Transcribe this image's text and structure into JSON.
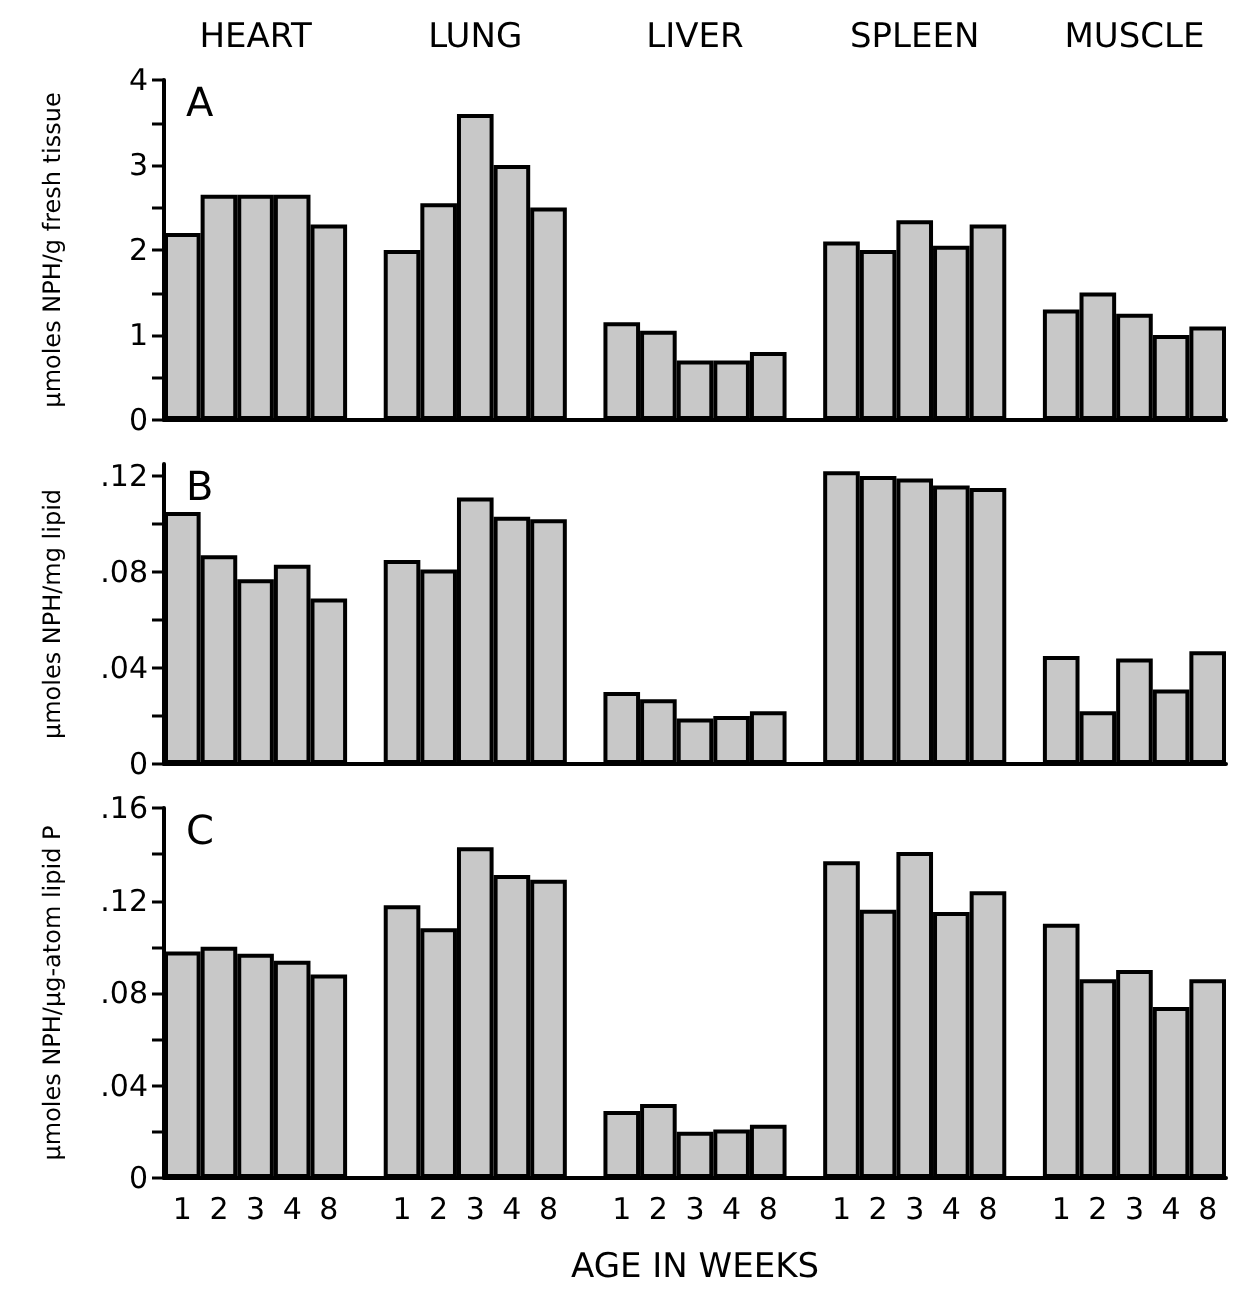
{
  "chart_data": [
    {
      "type": "bar",
      "title": "A",
      "ylabel": "µmoles NPH/g fresh tissue",
      "annotations": [
        "HEART",
        "LUNG",
        "LIVER",
        "SPLEEN",
        "MUSCLE"
      ],
      "tick_labels": "y",
      "categories": [
        "1",
        "2",
        "3",
        "4",
        "8",
        null,
        "1",
        "2",
        "3",
        "4",
        "8",
        null,
        "1",
        "2",
        "3",
        "4",
        "8",
        null,
        "1",
        "2",
        "3",
        "4",
        "8",
        null,
        "1",
        "2",
        "3",
        "4",
        "8"
      ],
      "values": [
        2.2,
        2.65,
        2.65,
        2.65,
        2.3,
        null,
        2.0,
        2.55,
        3.6,
        3.0,
        2.5,
        null,
        1.15,
        1.05,
        0.7,
        0.7,
        0.8,
        null,
        2.1,
        2.0,
        2.35,
        2.05,
        2.3,
        null,
        1.3,
        1.5,
        1.25,
        1.0,
        1.1
      ],
      "color": "#c8c8c8",
      "ylim": [
        0,
        4
      ],
      "yticks": [
        0,
        {
          "value": 0.5,
          "label": null
        },
        1,
        {
          "value": 1.5,
          "label": null
        },
        2,
        {
          "value": 2.5,
          "label": null
        },
        3,
        {
          "value": 3.5,
          "label": null
        },
        4
      ],
      "grid": false
    },
    {
      "type": "bar",
      "title": "B",
      "ylabel": "µmoles NPH/mg lipid",
      "tick_labels": "y",
      "categories": [
        "1",
        "2",
        "3",
        "4",
        "8",
        null,
        "1",
        "2",
        "3",
        "4",
        "8",
        null,
        "1",
        "2",
        "3",
        "4",
        "8",
        null,
        "1",
        "2",
        "3",
        "4",
        "8",
        null,
        "1",
        "2",
        "3",
        "4",
        "8"
      ],
      "values": [
        0.105,
        0.087,
        0.077,
        0.083,
        0.069,
        null,
        0.085,
        0.081,
        0.111,
        0.103,
        0.102,
        null,
        0.03,
        0.027,
        0.019,
        0.02,
        0.022,
        null,
        0.122,
        0.12,
        0.119,
        0.116,
        0.115,
        null,
        0.045,
        0.022,
        0.044,
        0.031,
        0.047
      ],
      "color": "#c8c8c8",
      "ylim": [
        0,
        0.125
      ],
      "yticks": [
        0,
        {
          "value": 0.02,
          "label": null
        },
        {
          "value": 0.04,
          "label": ".04"
        },
        {
          "value": 0.06,
          "label": null
        },
        {
          "value": 0.08,
          "label": ".08"
        },
        {
          "value": 0.1,
          "label": null
        },
        {
          "value": 0.12,
          "label": ".12"
        }
      ],
      "grid": false
    },
    {
      "type": "bar",
      "title": "C",
      "ylabel": "µmoles NPH/µg-atom lipid P",
      "xlabel": "AGE IN WEEKS",
      "categories": [
        "1",
        "2",
        "3",
        "4",
        "8",
        null,
        "1",
        "2",
        "3",
        "4",
        "8",
        null,
        "1",
        "2",
        "3",
        "4",
        "8",
        null,
        "1",
        "2",
        "3",
        "4",
        "8",
        null,
        "1",
        "2",
        "3",
        "4",
        "8"
      ],
      "values": [
        0.098,
        0.1,
        0.097,
        0.094,
        0.088,
        null,
        0.118,
        0.108,
        0.143,
        0.131,
        0.129,
        null,
        0.029,
        0.032,
        0.02,
        0.021,
        0.023,
        null,
        0.137,
        0.116,
        0.141,
        0.115,
        0.124,
        null,
        0.11,
        0.086,
        0.09,
        0.074,
        0.086
      ],
      "color": "#c8c8c8",
      "ylim": [
        0,
        0.16
      ],
      "yticks": [
        0,
        {
          "value": 0.02,
          "label": null
        },
        {
          "value": 0.04,
          "label": ".04"
        },
        {
          "value": 0.06,
          "label": null
        },
        {
          "value": 0.08,
          "label": ".08"
        },
        {
          "value": 0.1,
          "label": null
        },
        {
          "value": 0.12,
          "label": ".12"
        },
        {
          "value": 0.14,
          "label": null
        },
        {
          "value": 0.16,
          "label": ".16"
        }
      ],
      "grid": false
    }
  ]
}
